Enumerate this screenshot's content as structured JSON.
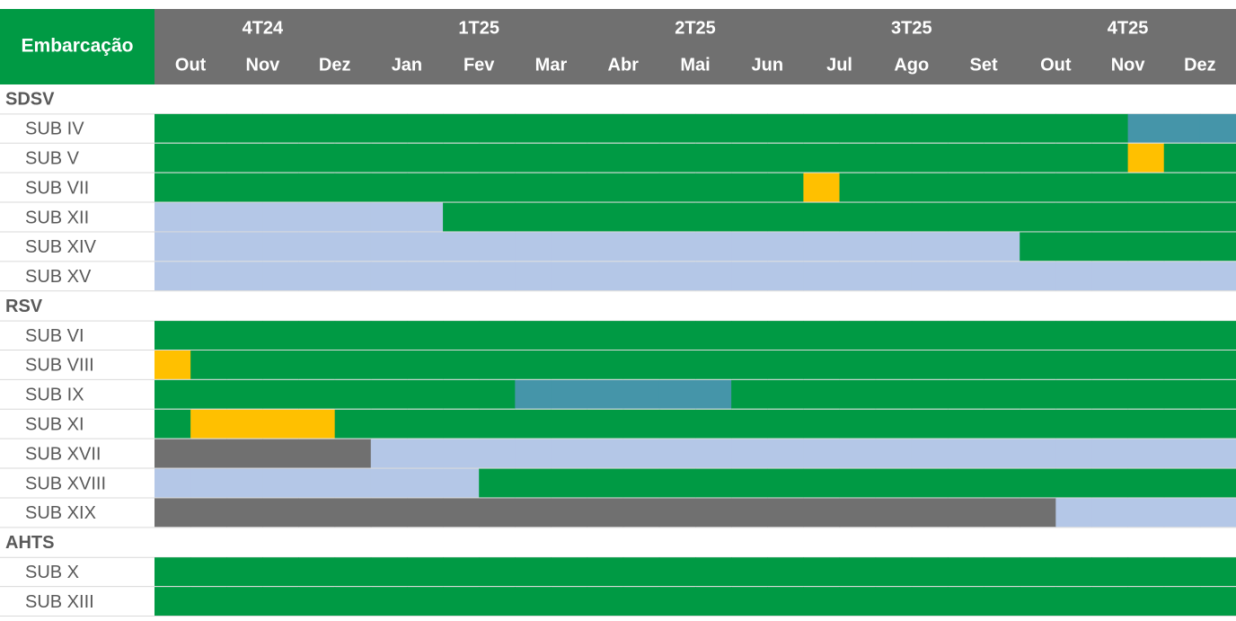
{
  "header": {
    "corner": "Embarcação",
    "quarters": [
      "4T24",
      "1T25",
      "2T25",
      "3T25",
      "4T25"
    ],
    "months": [
      "Out",
      "Nov",
      "Dez",
      "Jan",
      "Fev",
      "Mar",
      "Abr",
      "Mai",
      "Jun",
      "Jul",
      "Ago",
      "Set",
      "Out",
      "Nov",
      "Dez"
    ]
  },
  "groups": [
    {
      "label": "SDSV",
      "rows": [
        {
          "label": "SUB IV",
          "cells": [
            "#009a44",
            "#009a44",
            "#009a44",
            "#009a44",
            "#009a44",
            "#009a44",
            "#009a44",
            "#009a44",
            "#009a44",
            "#009a44",
            "#009a44",
            "#009a44",
            "#009a44",
            "#009a44",
            "#009a44",
            "#009a44",
            "#009a44",
            "#009a44",
            "#009a44",
            "#009a44",
            "#009a44",
            "#009a44",
            "#009a44",
            "#009a44",
            "#009a44",
            "#009a44",
            "#009a44",
            "#4595a9",
            "#4595a9",
            "#4595a9"
          ]
        },
        {
          "label": "SUB V",
          "cells": [
            "#009a44",
            "#009a44",
            "#009a44",
            "#009a44",
            "#009a44",
            "#009a44",
            "#009a44",
            "#009a44",
            "#009a44",
            "#009a44",
            "#009a44",
            "#009a44",
            "#009a44",
            "#009a44",
            "#009a44",
            "#009a44",
            "#009a44",
            "#009a44",
            "#009a44",
            "#009a44",
            "#009a44",
            "#009a44",
            "#009a44",
            "#009a44",
            "#009a44",
            "#009a44",
            "#009a44",
            "#ffc000",
            "#009a44",
            "#009a44"
          ]
        },
        {
          "label": "SUB VII",
          "cells": [
            "#009a44",
            "#009a44",
            "#009a44",
            "#009a44",
            "#009a44",
            "#009a44",
            "#009a44",
            "#009a44",
            "#009a44",
            "#009a44",
            "#009a44",
            "#009a44",
            "#009a44",
            "#009a44",
            "#009a44",
            "#009a44",
            "#009a44",
            "#009a44",
            "#ffc000",
            "#009a44",
            "#009a44",
            "#009a44",
            "#009a44",
            "#009a44",
            "#009a44",
            "#009a44",
            "#009a44",
            "#009a44",
            "#009a44",
            "#009a44"
          ]
        },
        {
          "label": "SUB XII",
          "cells": [
            "#b4c7e7",
            "#b4c7e7",
            "#b4c7e7",
            "#b4c7e7",
            "#b4c7e7",
            "#b4c7e7",
            "#b4c7e7",
            "#b4c7e7",
            "#009a44",
            "#009a44",
            "#009a44",
            "#009a44",
            "#009a44",
            "#009a44",
            "#009a44",
            "#009a44",
            "#009a44",
            "#009a44",
            "#009a44",
            "#009a44",
            "#009a44",
            "#009a44",
            "#009a44",
            "#009a44",
            "#009a44",
            "#009a44",
            "#009a44",
            "#009a44",
            "#009a44",
            "#009a44"
          ]
        },
        {
          "label": "SUB XIV",
          "cells": [
            "#b4c7e7",
            "#b4c7e7",
            "#b4c7e7",
            "#b4c7e7",
            "#b4c7e7",
            "#b4c7e7",
            "#b4c7e7",
            "#b4c7e7",
            "#b4c7e7",
            "#b4c7e7",
            "#b4c7e7",
            "#b4c7e7",
            "#b4c7e7",
            "#b4c7e7",
            "#b4c7e7",
            "#b4c7e7",
            "#b4c7e7",
            "#b4c7e7",
            "#b4c7e7",
            "#b4c7e7",
            "#b4c7e7",
            "#b4c7e7",
            "#b4c7e7",
            "#b4c7e7",
            "#009a44",
            "#009a44",
            "#009a44",
            "#009a44",
            "#009a44",
            "#009a44"
          ]
        },
        {
          "label": "SUB XV",
          "cells": [
            "#b4c7e7",
            "#b4c7e7",
            "#b4c7e7",
            "#b4c7e7",
            "#b4c7e7",
            "#b4c7e7",
            "#b4c7e7",
            "#b4c7e7",
            "#b4c7e7",
            "#b4c7e7",
            "#b4c7e7",
            "#b4c7e7",
            "#b4c7e7",
            "#b4c7e7",
            "#b4c7e7",
            "#b4c7e7",
            "#b4c7e7",
            "#b4c7e7",
            "#b4c7e7",
            "#b4c7e7",
            "#b4c7e7",
            "#b4c7e7",
            "#b4c7e7",
            "#b4c7e7",
            "#b4c7e7",
            "#b4c7e7",
            "#b4c7e7",
            "#b4c7e7",
            "#b4c7e7",
            "#b4c7e7"
          ]
        }
      ]
    },
    {
      "label": "RSV",
      "rows": [
        {
          "label": "SUB VI",
          "cells": [
            "#009a44",
            "#009a44",
            "#009a44",
            "#009a44",
            "#009a44",
            "#009a44",
            "#009a44",
            "#009a44",
            "#009a44",
            "#009a44",
            "#009a44",
            "#009a44",
            "#009a44",
            "#009a44",
            "#009a44",
            "#009a44",
            "#009a44",
            "#009a44",
            "#009a44",
            "#009a44",
            "#009a44",
            "#009a44",
            "#009a44",
            "#009a44",
            "#009a44",
            "#009a44",
            "#009a44",
            "#009a44",
            "#009a44",
            "#009a44"
          ]
        },
        {
          "label": "SUB VIII",
          "cells": [
            "#ffc000",
            "#009a44",
            "#009a44",
            "#009a44",
            "#009a44",
            "#009a44",
            "#009a44",
            "#009a44",
            "#009a44",
            "#009a44",
            "#009a44",
            "#009a44",
            "#009a44",
            "#009a44",
            "#009a44",
            "#009a44",
            "#009a44",
            "#009a44",
            "#009a44",
            "#009a44",
            "#009a44",
            "#009a44",
            "#009a44",
            "#009a44",
            "#009a44",
            "#009a44",
            "#009a44",
            "#009a44",
            "#009a44",
            "#009a44"
          ]
        },
        {
          "label": "SUB IX",
          "cells": [
            "#009a44",
            "#009a44",
            "#009a44",
            "#009a44",
            "#009a44",
            "#009a44",
            "#009a44",
            "#009a44",
            "#009a44",
            "#009a44",
            "#4595a9",
            "#4595a9",
            "#4595a9",
            "#4595a9",
            "#4595a9",
            "#4595a9",
            "#009a44",
            "#009a44",
            "#009a44",
            "#009a44",
            "#009a44",
            "#009a44",
            "#009a44",
            "#009a44",
            "#009a44",
            "#009a44",
            "#009a44",
            "#009a44",
            "#009a44",
            "#009a44"
          ]
        },
        {
          "label": "SUB XI",
          "cells": [
            "#009a44",
            "#ffc000",
            "#ffc000",
            "#ffc000",
            "#ffc000",
            "#009a44",
            "#009a44",
            "#009a44",
            "#009a44",
            "#009a44",
            "#009a44",
            "#009a44",
            "#009a44",
            "#009a44",
            "#009a44",
            "#009a44",
            "#009a44",
            "#009a44",
            "#009a44",
            "#009a44",
            "#009a44",
            "#009a44",
            "#009a44",
            "#009a44",
            "#009a44",
            "#009a44",
            "#009a44",
            "#009a44",
            "#009a44",
            "#009a44"
          ]
        },
        {
          "label": "SUB XVII",
          "cells": [
            "#707070",
            "#707070",
            "#707070",
            "#707070",
            "#707070",
            "#707070",
            "#b4c7e7",
            "#b4c7e7",
            "#b4c7e7",
            "#b4c7e7",
            "#b4c7e7",
            "#b4c7e7",
            "#b4c7e7",
            "#b4c7e7",
            "#b4c7e7",
            "#b4c7e7",
            "#b4c7e7",
            "#b4c7e7",
            "#b4c7e7",
            "#b4c7e7",
            "#b4c7e7",
            "#b4c7e7",
            "#b4c7e7",
            "#b4c7e7",
            "#b4c7e7",
            "#b4c7e7",
            "#b4c7e7",
            "#b4c7e7",
            "#b4c7e7",
            "#b4c7e7"
          ]
        },
        {
          "label": "SUB XVIII",
          "cells": [
            "#b4c7e7",
            "#b4c7e7",
            "#b4c7e7",
            "#b4c7e7",
            "#b4c7e7",
            "#b4c7e7",
            "#b4c7e7",
            "#b4c7e7",
            "#b4c7e7",
            "#009a44",
            "#009a44",
            "#009a44",
            "#009a44",
            "#009a44",
            "#009a44",
            "#009a44",
            "#009a44",
            "#009a44",
            "#009a44",
            "#009a44",
            "#009a44",
            "#009a44",
            "#009a44",
            "#009a44",
            "#009a44",
            "#009a44",
            "#009a44",
            "#009a44",
            "#009a44",
            "#009a44"
          ]
        },
        {
          "label": "SUB XIX",
          "cells": [
            "#707070",
            "#707070",
            "#707070",
            "#707070",
            "#707070",
            "#707070",
            "#707070",
            "#707070",
            "#707070",
            "#707070",
            "#707070",
            "#707070",
            "#707070",
            "#707070",
            "#707070",
            "#707070",
            "#707070",
            "#707070",
            "#707070",
            "#707070",
            "#707070",
            "#707070",
            "#707070",
            "#707070",
            "#707070",
            "#b4c7e7",
            "#b4c7e7",
            "#b4c7e7",
            "#b4c7e7",
            "#b4c7e7"
          ]
        }
      ]
    },
    {
      "label": "AHTS",
      "rows": [
        {
          "label": "SUB X",
          "cells": [
            "#009a44",
            "#009a44",
            "#009a44",
            "#009a44",
            "#009a44",
            "#009a44",
            "#009a44",
            "#009a44",
            "#009a44",
            "#009a44",
            "#009a44",
            "#009a44",
            "#009a44",
            "#009a44",
            "#009a44",
            "#009a44",
            "#009a44",
            "#009a44",
            "#009a44",
            "#009a44",
            "#009a44",
            "#009a44",
            "#009a44",
            "#009a44",
            "#009a44",
            "#009a44",
            "#009a44",
            "#009a44",
            "#009a44",
            "#009a44"
          ]
        },
        {
          "label": "SUB XIII",
          "cells": [
            "#009a44",
            "#009a44",
            "#009a44",
            "#009a44",
            "#009a44",
            "#009a44",
            "#009a44",
            "#009a44",
            "#009a44",
            "#009a44",
            "#009a44",
            "#009a44",
            "#009a44",
            "#009a44",
            "#009a44",
            "#009a44",
            "#009a44",
            "#009a44",
            "#009a44",
            "#009a44",
            "#009a44",
            "#009a44",
            "#009a44",
            "#009a44",
            "#009a44",
            "#009a44",
            "#009a44",
            "#009a44",
            "#009a44",
            "#009a44"
          ]
        }
      ]
    }
  ]
}
